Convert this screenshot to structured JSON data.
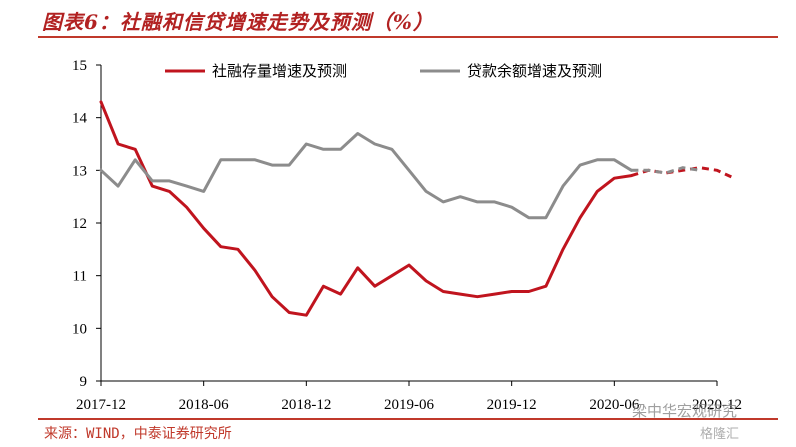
{
  "title": "图表6：社融和信贷增速走势及预测（%）",
  "source": "来源：WIND，中泰证券研究所",
  "watermark": "梁中华宏观研究",
  "watermark2": "格隆汇",
  "colors": {
    "social": "#c0141e",
    "loan": "#8c8c8c",
    "accent": "#c0392b"
  },
  "chart_data": {
    "type": "line",
    "title": "",
    "xlabel": "",
    "ylabel": "",
    "ylim": [
      9,
      15
    ],
    "yticks": [
      9,
      10,
      11,
      12,
      13,
      14,
      15
    ],
    "xlim": [
      "2017-12",
      "2020-12"
    ],
    "xticks": [
      "2017-12",
      "2018-06",
      "2018-12",
      "2019-06",
      "2019-12",
      "2020-06",
      "2020-12"
    ],
    "legend_position": "top",
    "grid": false,
    "series": [
      {
        "name": "社融存量增速及预测",
        "color": "#c0141e",
        "x": [
          "2017-12",
          "2018-01",
          "2018-02",
          "2018-03",
          "2018-04",
          "2018-05",
          "2018-06",
          "2018-07",
          "2018-08",
          "2018-09",
          "2018-10",
          "2018-11",
          "2018-12",
          "2019-01",
          "2019-02",
          "2019-03",
          "2019-04",
          "2019-05",
          "2019-06",
          "2019-07",
          "2019-08",
          "2019-09",
          "2019-10",
          "2019-11",
          "2019-12",
          "2020-01",
          "2020-02",
          "2020-03",
          "2020-04",
          "2020-05",
          "2020-06",
          "2020-07"
        ],
        "values": [
          14.3,
          13.5,
          13.4,
          12.7,
          12.6,
          12.3,
          11.9,
          11.55,
          11.5,
          11.1,
          10.6,
          10.3,
          10.25,
          10.8,
          10.65,
          11.15,
          10.8,
          11.0,
          11.2,
          10.9,
          10.7,
          10.65,
          10.6,
          10.65,
          10.7,
          10.7,
          10.8,
          11.5,
          12.1,
          12.6,
          12.85,
          12.9
        ],
        "forecast_x": [
          "2020-07",
          "2020-08",
          "2020-09",
          "2020-10",
          "2020-11",
          "2020-12",
          "2021-01"
        ],
        "forecast_values": [
          12.9,
          13.0,
          12.95,
          13.0,
          13.05,
          13.0,
          12.85
        ]
      },
      {
        "name": "贷款余额增速及预测",
        "color": "#8c8c8c",
        "x": [
          "2017-12",
          "2018-01",
          "2018-02",
          "2018-03",
          "2018-04",
          "2018-05",
          "2018-06",
          "2018-07",
          "2018-08",
          "2018-09",
          "2018-10",
          "2018-11",
          "2018-12",
          "2019-01",
          "2019-02",
          "2019-03",
          "2019-04",
          "2019-05",
          "2019-06",
          "2019-07",
          "2019-08",
          "2019-09",
          "2019-10",
          "2019-11",
          "2019-12",
          "2020-01",
          "2020-02",
          "2020-03",
          "2020-04",
          "2020-05",
          "2020-06",
          "2020-07"
        ],
        "values": [
          13.0,
          12.7,
          13.2,
          12.8,
          12.8,
          12.7,
          12.6,
          13.2,
          13.2,
          13.2,
          13.1,
          13.1,
          13.5,
          13.4,
          13.4,
          13.7,
          13.5,
          13.4,
          13.0,
          12.6,
          12.4,
          12.5,
          12.4,
          12.4,
          12.3,
          12.1,
          12.1,
          12.7,
          13.1,
          13.2,
          13.2,
          13.0
        ],
        "forecast_x": [
          "2020-07",
          "2020-08",
          "2020-09",
          "2020-10",
          "2020-11"
        ],
        "forecast_values": [
          13.0,
          13.0,
          12.95,
          13.05,
          13.0
        ]
      }
    ]
  }
}
